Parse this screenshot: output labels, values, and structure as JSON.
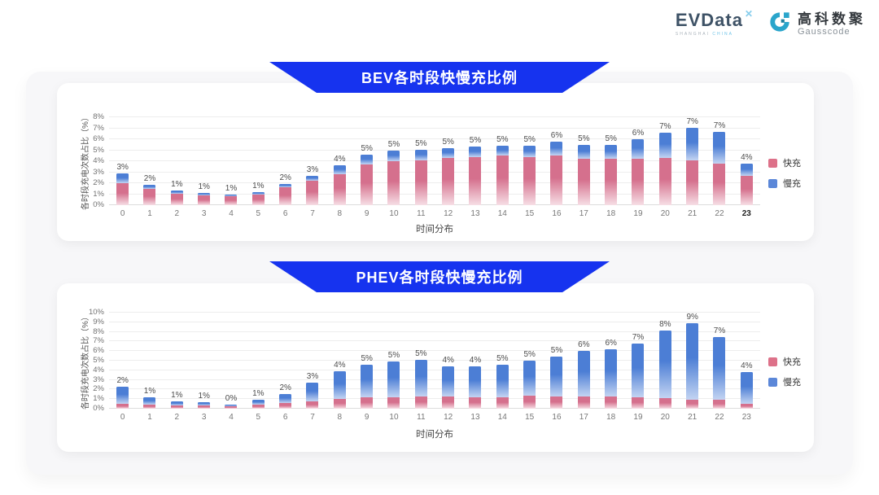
{
  "header": {
    "evdata_logo": {
      "text": "EVData",
      "superscript": "✕",
      "sub_left": "SHANGHAI",
      "sub_right": "CHINA"
    },
    "gausscode_logo": {
      "name_cn": "高科数聚",
      "name_en": "Gausscode",
      "icon_color": "#2aa5cb"
    }
  },
  "colors": {
    "banner_blue": "#1633ef",
    "fast_pink": "#dd7189",
    "slow_blue": "#5b87d8",
    "card_bg": "#ffffff",
    "container_bg": "#f7f7f9"
  },
  "chart_data": [
    {
      "type": "bar",
      "stacked": true,
      "title": "BEV各时段快慢充比例",
      "xlabel": "时间分布",
      "ylabel": "各时段充电次数占比（%）",
      "ylim": [
        0,
        8
      ],
      "ytick_step": 1,
      "ytick_suffix": "%",
      "grid": true,
      "legend_position": "right",
      "x_tick_bold": "23",
      "categories": [
        "0",
        "1",
        "2",
        "3",
        "4",
        "5",
        "6",
        "7",
        "8",
        "9",
        "10",
        "11",
        "12",
        "13",
        "14",
        "15",
        "16",
        "17",
        "18",
        "19",
        "20",
        "21",
        "22",
        "23"
      ],
      "series": [
        {
          "name": "快充",
          "color": "#dd7189",
          "gradient": [
            "#d5708d",
            "#f6dee5"
          ],
          "values": [
            2.0,
            1.45,
            1.05,
            0.9,
            0.8,
            1.0,
            1.6,
            2.2,
            2.85,
            3.7,
            4.0,
            4.05,
            4.3,
            4.35,
            4.5,
            4.4,
            4.5,
            4.2,
            4.2,
            4.2,
            4.3,
            4.2,
            3.8,
            2.7
          ]
        },
        {
          "name": "慢充",
          "color": "#5b87d8",
          "gradient": [
            "#4c7ed5",
            "#c3d4f2"
          ],
          "values": [
            0.9,
            0.4,
            0.3,
            0.2,
            0.15,
            0.2,
            0.3,
            0.5,
            0.8,
            0.9,
            1.0,
            1.0,
            0.9,
            0.95,
            0.9,
            1.0,
            1.3,
            1.25,
            1.25,
            1.8,
            2.3,
            3.1,
            2.9,
            1.1
          ]
        }
      ],
      "total_labels": [
        "3%",
        "2%",
        "1%",
        "1%",
        "1%",
        "1%",
        "2%",
        "3%",
        "4%",
        "5%",
        "5%",
        "5%",
        "5%",
        "5%",
        "5%",
        "5%",
        "6%",
        "5%",
        "5%",
        "6%",
        "7%",
        "7%",
        "7%",
        "4%"
      ]
    },
    {
      "type": "bar",
      "stacked": true,
      "title": "PHEV各时段快慢充比例",
      "xlabel": "时间分布",
      "ylabel": "各时段充电次数占比（%）",
      "ylim": [
        0,
        10
      ],
      "ytick_step": 1,
      "ytick_suffix": "%",
      "grid": true,
      "legend_position": "right",
      "x_tick_bold": "",
      "categories": [
        "0",
        "1",
        "2",
        "3",
        "4",
        "5",
        "6",
        "7",
        "8",
        "9",
        "10",
        "11",
        "12",
        "13",
        "14",
        "15",
        "16",
        "17",
        "18",
        "19",
        "20",
        "21",
        "22",
        "23"
      ],
      "series": [
        {
          "name": "快充",
          "color": "#dd7189",
          "gradient": [
            "#d5708d",
            "#f6dee5"
          ],
          "values": [
            0.5,
            0.45,
            0.35,
            0.3,
            0.25,
            0.4,
            0.6,
            0.8,
            1.0,
            1.15,
            1.2,
            1.3,
            1.25,
            1.2,
            1.2,
            1.35,
            1.3,
            1.3,
            1.25,
            1.2,
            1.1,
            1.0,
            0.9,
            0.55
          ]
        },
        {
          "name": "慢充",
          "color": "#5b87d8",
          "gradient": [
            "#4c7ed5",
            "#c3d4f2"
          ],
          "values": [
            1.75,
            0.75,
            0.45,
            0.35,
            0.2,
            0.5,
            0.95,
            1.95,
            2.9,
            3.45,
            3.7,
            3.8,
            3.15,
            3.25,
            3.4,
            3.65,
            4.1,
            4.7,
            4.95,
            5.6,
            7.0,
            8.2,
            6.55,
            3.25
          ]
        }
      ],
      "total_labels": [
        "2%",
        "1%",
        "1%",
        "1%",
        "0%",
        "1%",
        "2%",
        "3%",
        "4%",
        "5%",
        "5%",
        "5%",
        "4%",
        "4%",
        "5%",
        "5%",
        "5%",
        "6%",
        "6%",
        "7%",
        "8%",
        "9%",
        "7%",
        "4%"
      ]
    }
  ]
}
